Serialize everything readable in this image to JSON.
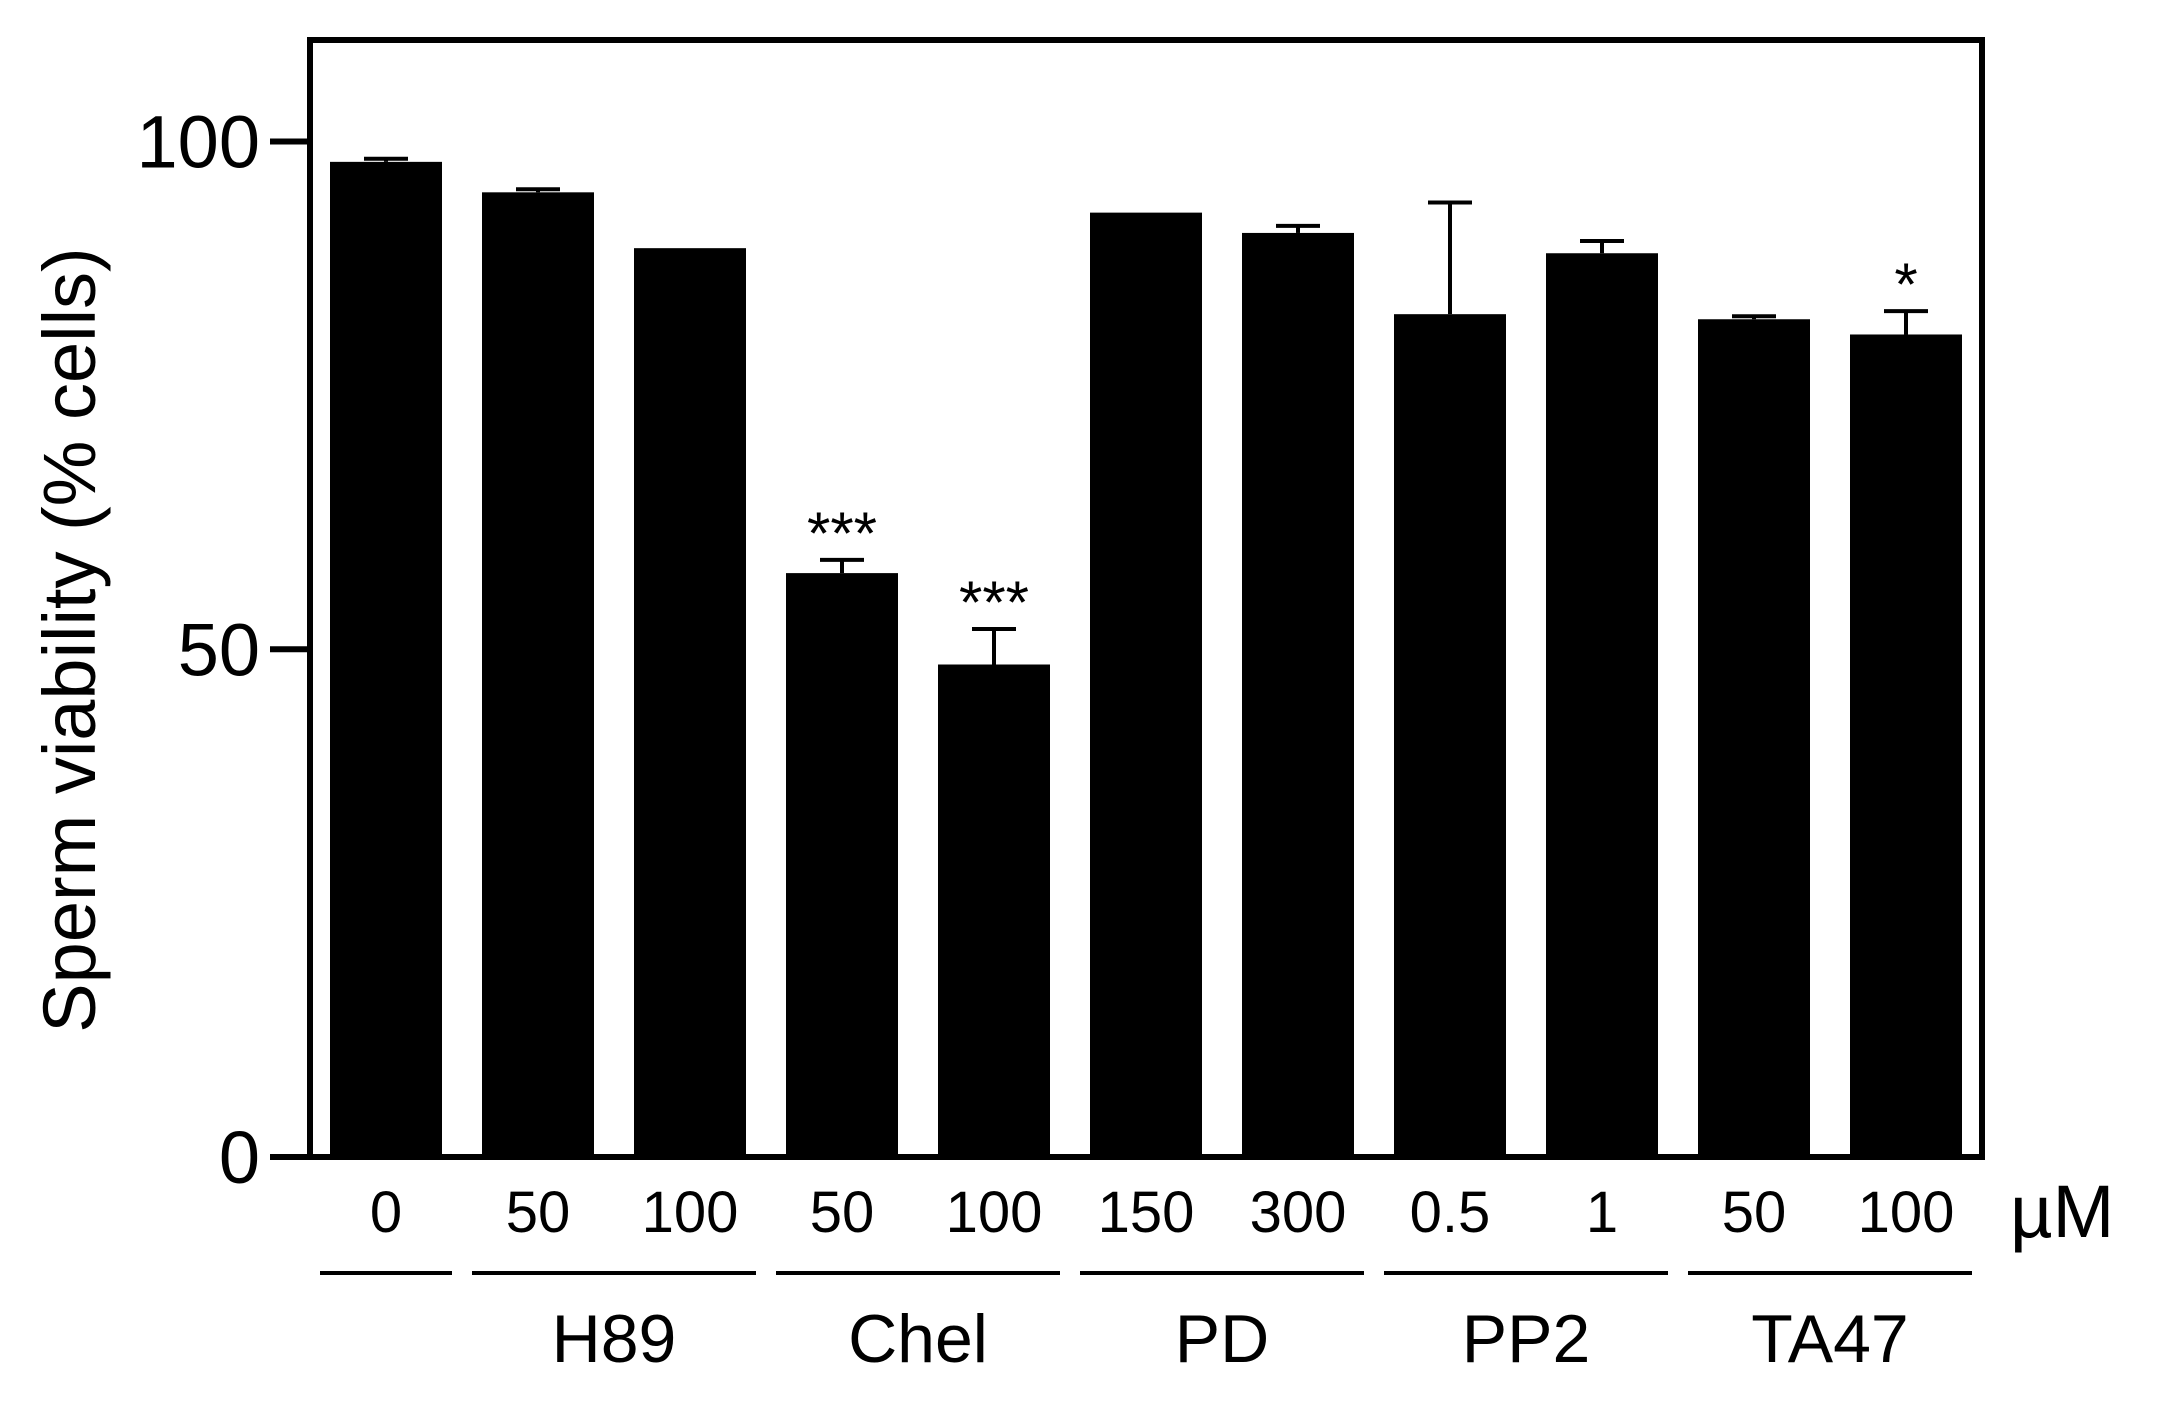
{
  "chart_data": {
    "type": "bar",
    "ylabel": "Sperm viability (% cells)",
    "unit_label": "µM",
    "ylim": [
      0,
      110
    ],
    "yticks": [
      0,
      50,
      100
    ],
    "grid": false,
    "bar_color": "#000000",
    "categories": [
      "0",
      "50",
      "100",
      "50",
      "100",
      "150",
      "300",
      "0.5",
      "1",
      "50",
      "100"
    ],
    "values": [
      98,
      95,
      89.5,
      57.5,
      48.5,
      93,
      91,
      83,
      89,
      82.5,
      81
    ],
    "error": [
      0.3,
      0.3,
      0,
      1.3,
      3.5,
      0,
      0.7,
      11,
      1.2,
      0.3,
      2.3
    ],
    "significance": [
      "",
      "",
      "",
      "***",
      "***",
      "",
      "",
      "",
      "",
      "",
      "*"
    ],
    "groups": [
      {
        "label": "",
        "start": 0,
        "end": 0
      },
      {
        "label": "H89",
        "start": 1,
        "end": 2
      },
      {
        "label": "Chel",
        "start": 3,
        "end": 4
      },
      {
        "label": "PD",
        "start": 5,
        "end": 6
      },
      {
        "label": "PP2",
        "start": 7,
        "end": 8
      },
      {
        "label": "TA47",
        "start": 9,
        "end": 10
      }
    ]
  }
}
